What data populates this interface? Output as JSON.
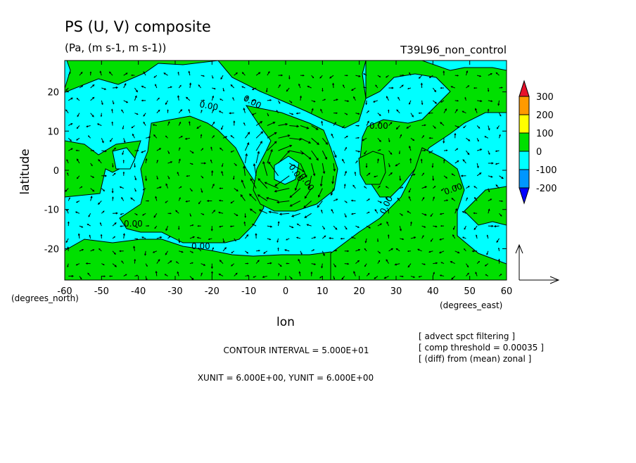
{
  "chart_data": {
    "type": "contour+vector",
    "title": "PS (U, V) composite",
    "subtitle": "(Pa, (m s-1, m s-1))",
    "run_label": "T39L96_non_control",
    "xlabel": "lon",
    "ylabel": "latitude",
    "x_unit_label": "(degrees_east)",
    "y_unit_label": "(degrees_north)",
    "xlim": [
      -60,
      60
    ],
    "ylim": [
      -28,
      28
    ],
    "x_ticks": [
      "-60",
      "-50",
      "-40",
      "-30",
      "-20",
      "-10",
      "0",
      "10",
      "20",
      "30",
      "40",
      "50",
      "60"
    ],
    "y_ticks": [
      "20",
      "10",
      "0",
      "-10",
      "-20"
    ],
    "colorbar": {
      "labels": [
        "300",
        "200",
        "100",
        "0",
        "-100",
        "-200"
      ],
      "colors": [
        "#e8102a",
        "#ff9a00",
        "#ffff00",
        "#00e000",
        "#00ffff",
        "#0096ff",
        "#0000ff"
      ]
    },
    "contour_labels": [
      "0.00",
      "0.00",
      "0.00",
      "0.00",
      "0.00",
      "0.00",
      "0.00",
      "0.00",
      "0.00"
    ],
    "notes": {
      "contour_interval": "CONTOUR INTERVAL = 5.000E+01",
      "units": "XUNIT = 6.000E+00, YUNIT = 6.000E+00",
      "filters": [
        "[ advect spct filtering ]",
        "[ comp threshold = 0.00035 ]",
        "[ (diff) from (mean) zonal ]"
      ]
    }
  }
}
